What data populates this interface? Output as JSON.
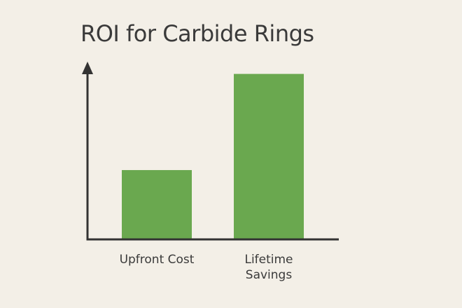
{
  "chart_data": {
    "type": "bar",
    "title": "ROI for Carbide Rings",
    "categories": [
      "Upfront Cost",
      "Lifetime Savings"
    ],
    "category_lines": [
      [
        "Upfront Cost"
      ],
      [
        "Lifetime",
        "Savings"
      ]
    ],
    "values": [
      31,
      74
    ],
    "ylim": [
      0,
      77
    ],
    "xlabel": "",
    "ylabel": "",
    "grid": false,
    "legend": "none",
    "colors": {
      "bar": "#6aa84f",
      "axis": "#333333",
      "background": "#f3efe7"
    }
  }
}
